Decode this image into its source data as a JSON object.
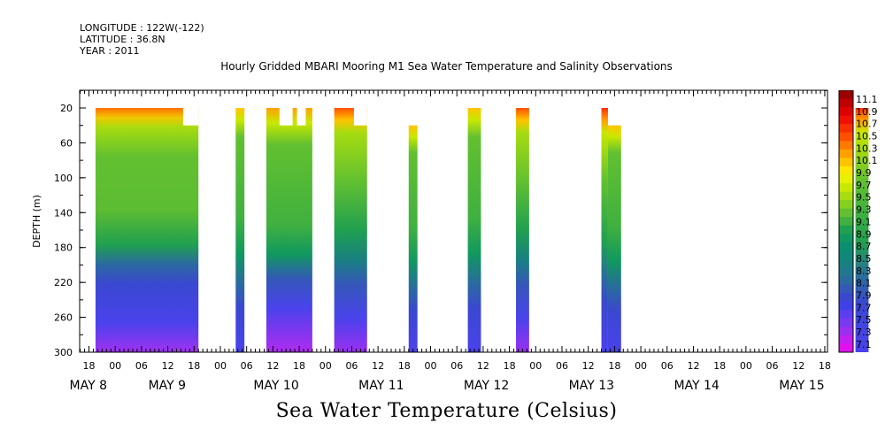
{
  "header": {
    "longitude": "LONGITUDE : 122W(-122)",
    "latitude": "LATITUDE : 36.8N",
    "year": "YEAR : 2011"
  },
  "chart_data": {
    "type": "heatmap",
    "title": "Hourly Gridded MBARI Mooring M1 Sea Water Temperature and Salinity Observations",
    "bottom_title": "Sea Water Temperature (Celsius)",
    "ylabel": "DEPTH (m)",
    "xlabel": "",
    "x_unit": "hours since MAY 7 18:00 (tick labels printed as hour of day)",
    "xlim": [
      0,
      204
    ],
    "ylim": [
      300,
      0
    ],
    "y_ticks": [
      20,
      60,
      100,
      140,
      180,
      220,
      260,
      300
    ],
    "hour_ticks": [
      {
        "x": 0,
        "label": "18"
      },
      {
        "x": 6,
        "label": "00"
      },
      {
        "x": 12,
        "label": "06"
      },
      {
        "x": 18,
        "label": "12"
      },
      {
        "x": 24,
        "label": "18"
      },
      {
        "x": 30,
        "label": "00"
      },
      {
        "x": 36,
        "label": "06"
      },
      {
        "x": 42,
        "label": "12"
      },
      {
        "x": 48,
        "label": "18"
      },
      {
        "x": 54,
        "label": "00"
      },
      {
        "x": 60,
        "label": "06"
      },
      {
        "x": 66,
        "label": "12"
      },
      {
        "x": 72,
        "label": "18"
      },
      {
        "x": 78,
        "label": "00"
      },
      {
        "x": 84,
        "label": "06"
      },
      {
        "x": 90,
        "label": "12"
      },
      {
        "x": 96,
        "label": "18"
      },
      {
        "x": 102,
        "label": "00"
      },
      {
        "x": 108,
        "label": "06"
      },
      {
        "x": 114,
        "label": "12"
      },
      {
        "x": 120,
        "label": "18"
      },
      {
        "x": 126,
        "label": "00"
      },
      {
        "x": 132,
        "label": "06"
      },
      {
        "x": 138,
        "label": "12"
      },
      {
        "x": 144,
        "label": "18"
      },
      {
        "x": 150,
        "label": "00"
      },
      {
        "x": 156,
        "label": "06"
      },
      {
        "x": 162,
        "label": "12"
      },
      {
        "x": 168,
        "label": "18"
      },
      {
        "x": 174,
        "label": "00"
      },
      {
        "x": 180,
        "label": "06"
      },
      {
        "x": 186,
        "label": "12"
      },
      {
        "x": 192,
        "label": "18"
      },
      {
        "x": 198,
        "label": "00"
      },
      {
        "x": 204,
        "label": "06"
      },
      {
        "x": 210,
        "label": "12"
      }
    ],
    "day_labels": [
      {
        "x": 0,
        "label": "MAY  8"
      },
      {
        "x": 18,
        "label": "MAY  9"
      },
      {
        "x": 42,
        "label": "MAY 10"
      },
      {
        "x": 66,
        "label": "MAY 11"
      },
      {
        "x": 90,
        "label": "MAY 12"
      },
      {
        "x": 114,
        "label": "MAY 13"
      },
      {
        "x": 138,
        "label": "MAY 14"
      },
      {
        "x": 162,
        "label": "MAY 15"
      }
    ],
    "colorbar": {
      "labels": [
        "11.1",
        "10.9",
        "10.7",
        "10.5",
        "10.3",
        "10.1",
        "9.9",
        "9.7",
        "9.5",
        "9.3",
        "9.1",
        "8.9",
        "8.7",
        "8.5",
        "8.3",
        "8.1",
        "7.9",
        "7.7",
        "7.5",
        "7.3",
        "7.1"
      ],
      "colors": [
        "#9a0000",
        "#c00000",
        "#dd0000",
        "#f01000",
        "#f83000",
        "#ff5000",
        "#ff7800",
        "#ffa000",
        "#ffc400",
        "#ffe600",
        "#e6f000",
        "#c8e800",
        "#a6dc10",
        "#84d020",
        "#62c030",
        "#40b040",
        "#20a050",
        "#109860",
        "#0a9070",
        "#108878",
        "#188080",
        "#207890",
        "#2a6aa0",
        "#3458b8",
        "#3a48d0",
        "#4040e8",
        "#5a3ef0",
        "#7a38f0",
        "#9a30f0",
        "#c020f0",
        "#e010f0"
      ]
    },
    "data_blocks": [
      {
        "start": 1.5,
        "end": 25.0,
        "top": 20,
        "bottom": 300,
        "profile": "long",
        "notch_start": 21.5,
        "notch_top": 40
      },
      {
        "start": 33.5,
        "end": 35.5,
        "top": 20,
        "bottom": 300,
        "profile": "short"
      },
      {
        "start": 40.5,
        "end": 51.0,
        "top": 20,
        "bottom": 300,
        "profile": "notched",
        "gaps": [
          [
            43.5,
            46.5
          ],
          [
            47.5,
            49.5
          ]
        ],
        "gap_bottom": 40
      },
      {
        "start": 56.0,
        "end": 63.5,
        "top": 20,
        "bottom": 300,
        "profile": "warm",
        "notch_start": 60.5,
        "notch_top": 40
      },
      {
        "start": 73.0,
        "end": 75.0,
        "top": 40,
        "bottom": 300,
        "profile": "short"
      },
      {
        "start": 86.5,
        "end": 89.5,
        "top": 20,
        "bottom": 300,
        "profile": "short"
      },
      {
        "start": 97.5,
        "end": 100.5,
        "top": 20,
        "bottom": 300,
        "profile": "warm"
      },
      {
        "start": 117.0,
        "end": 118.5,
        "top": 20,
        "bottom": 300,
        "profile": "hot"
      },
      {
        "start": 118.5,
        "end": 121.5,
        "top": 40,
        "bottom": 300,
        "profile": "short"
      },
      {
        "start": 175.0,
        "end": 178.0,
        "top": 20,
        "bottom": 300,
        "profile": "hot"
      }
    ]
  }
}
